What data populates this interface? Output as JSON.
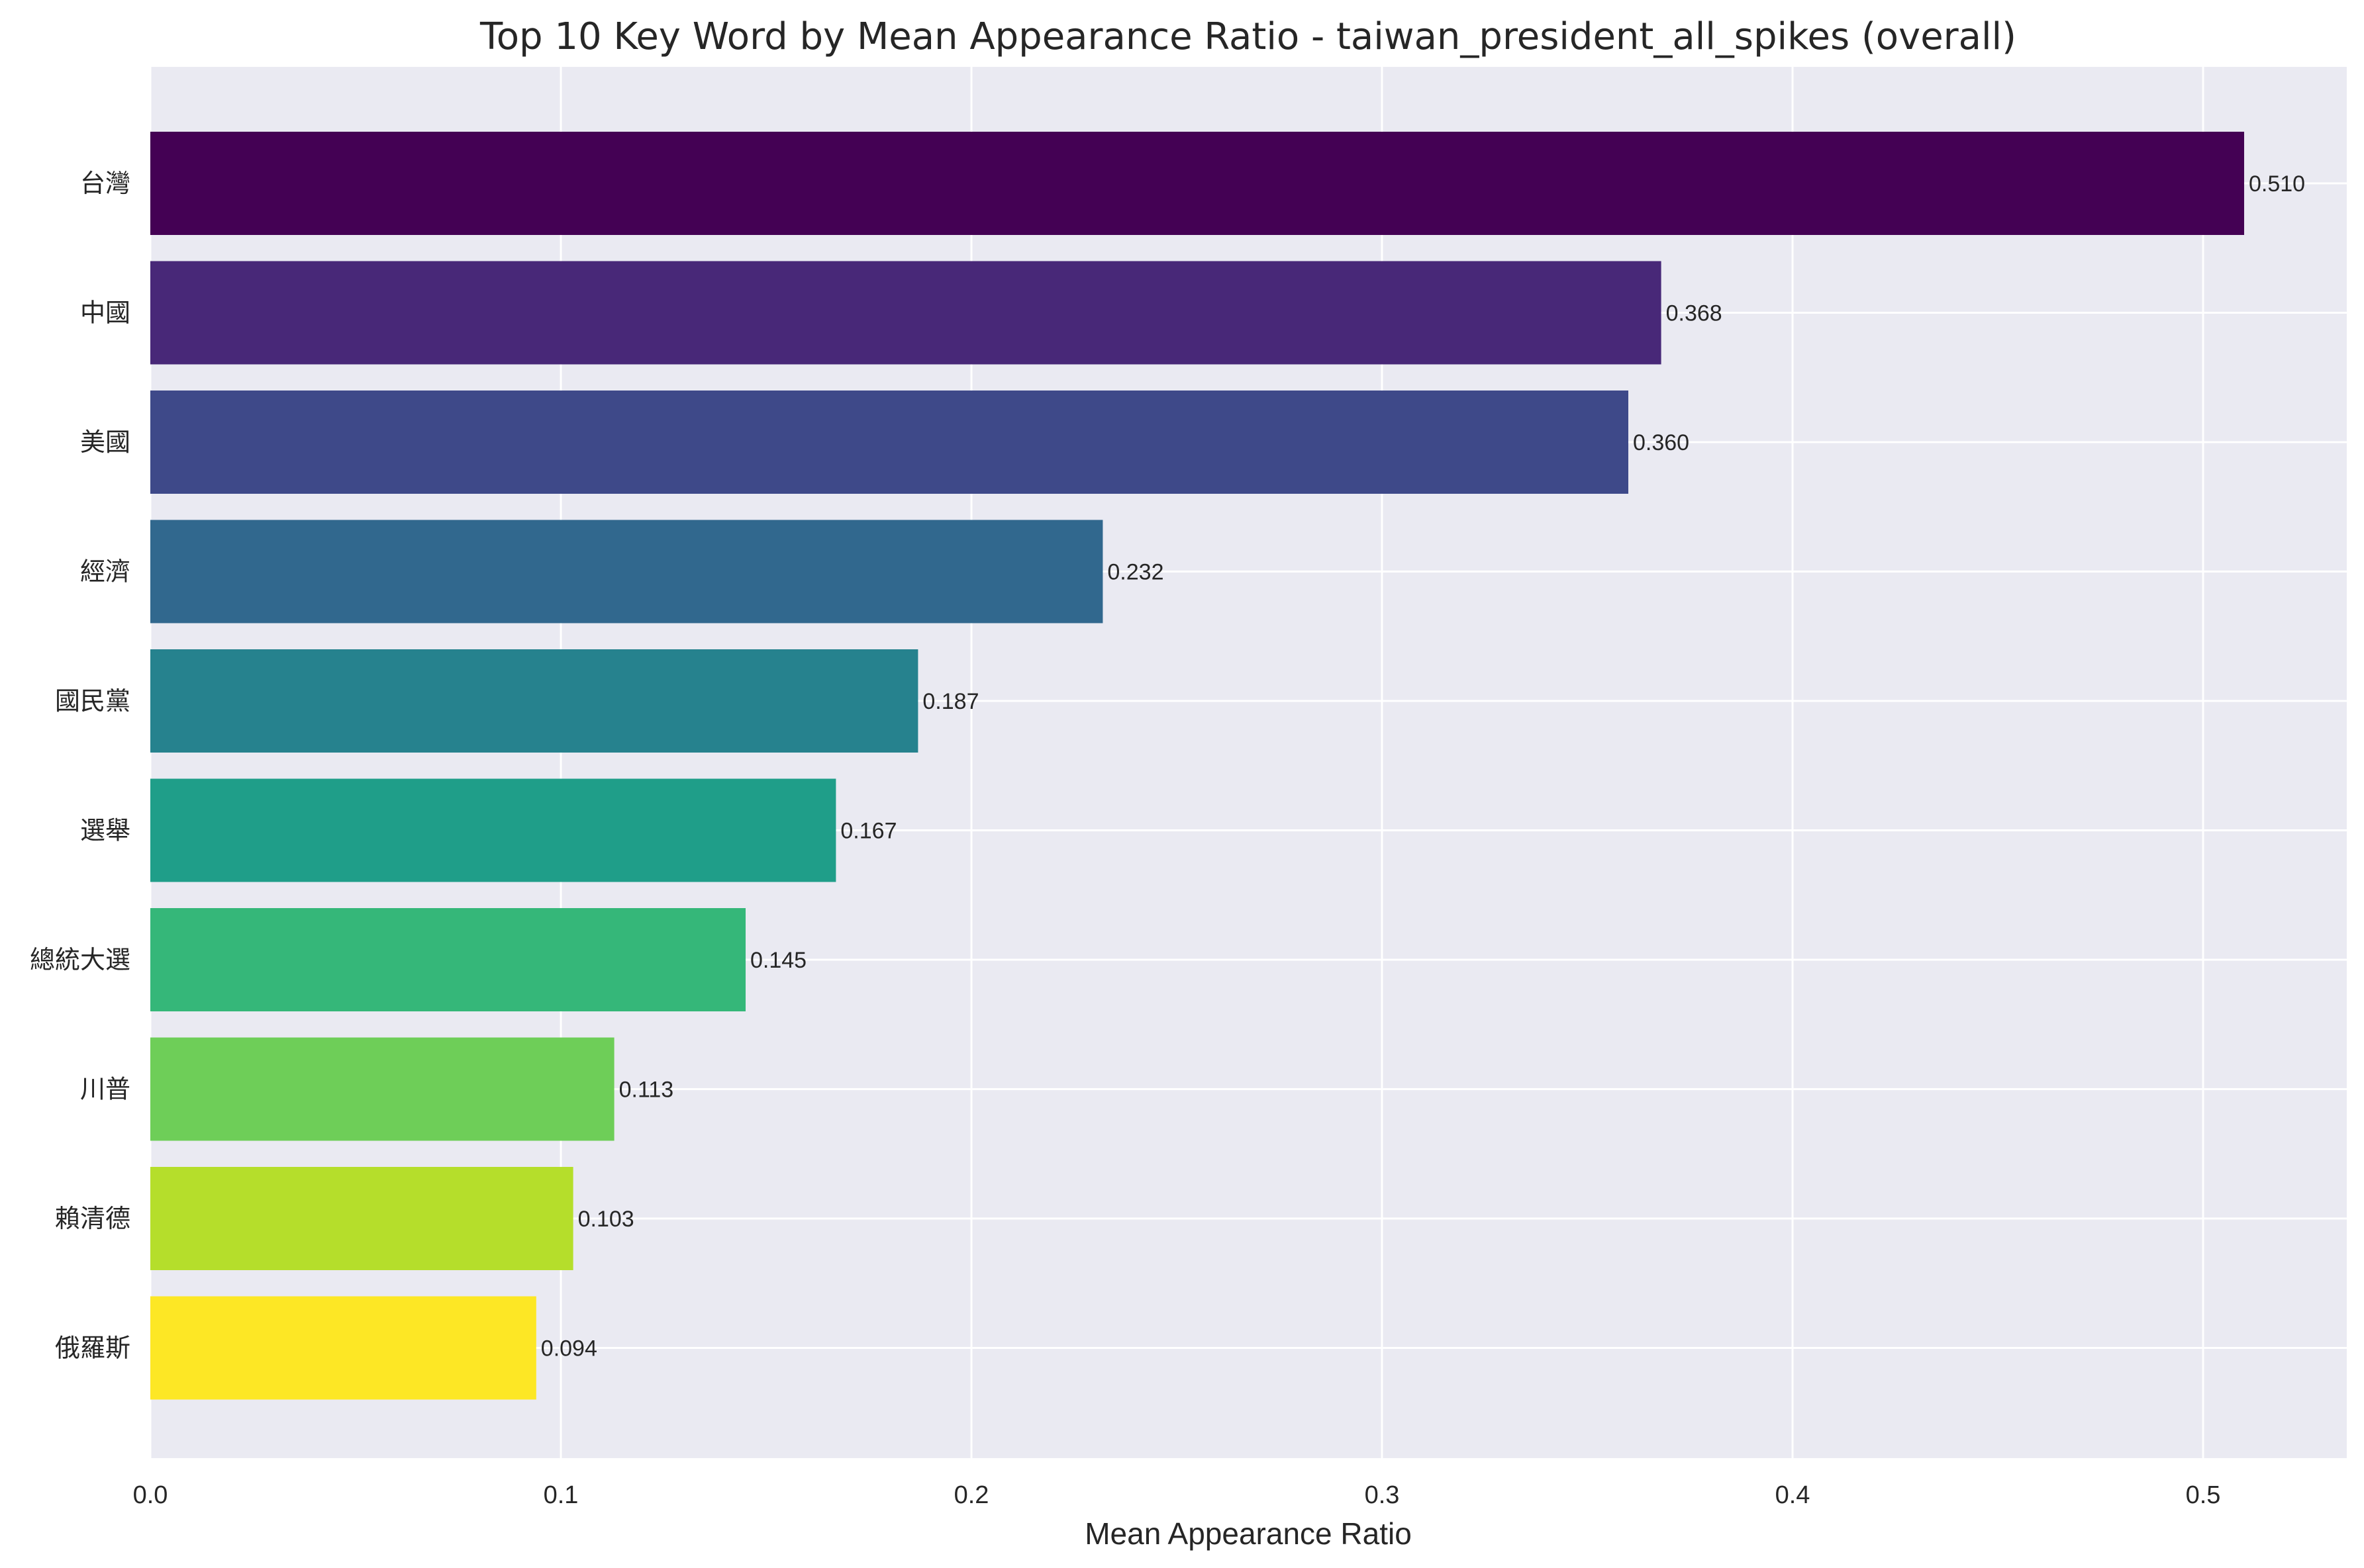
{
  "chart_data": {
    "type": "bar",
    "orientation": "horizontal",
    "title": "Top 10 Key Word by Mean Appearance Ratio - taiwan_president_all_spikes (overall)",
    "xlabel": "Mean Appearance Ratio",
    "ylabel": "",
    "xlim": [
      0,
      0.535
    ],
    "xticks": [
      0.0,
      0.1,
      0.2,
      0.3,
      0.4,
      0.5
    ],
    "xtick_labels": [
      "0.0",
      "0.1",
      "0.2",
      "0.3",
      "0.4",
      "0.5"
    ],
    "grid": true,
    "background": "#eaeaf2",
    "categories": [
      "台灣",
      "中國",
      "美國",
      "經濟",
      "國民黨",
      "選舉",
      "總統大選",
      "川普",
      "賴清德",
      "俄羅斯"
    ],
    "values": [
      0.51,
      0.368,
      0.36,
      0.232,
      0.187,
      0.167,
      0.145,
      0.113,
      0.103,
      0.094
    ],
    "value_labels": [
      "0.510",
      "0.368",
      "0.360",
      "0.232",
      "0.187",
      "0.167",
      "0.145",
      "0.113",
      "0.103",
      "0.094"
    ],
    "colors": [
      "#440154",
      "#482878",
      "#3e4989",
      "#31688e",
      "#26828e",
      "#1f9e89",
      "#35b779",
      "#6ece58",
      "#b5de2b",
      "#fde725"
    ]
  }
}
